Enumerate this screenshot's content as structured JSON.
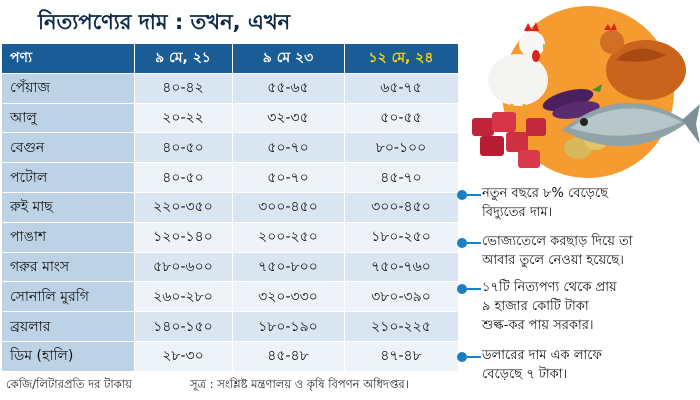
{
  "title": "নিত্যপণ্যের দাম : তখন, এখন",
  "table": {
    "headers": [
      "পণ্য",
      "৯ মে, ২১",
      "৯ মে ২৩",
      "১২ মে, ২৪"
    ],
    "rows": [
      [
        "পেঁয়াজ",
        "৪০-৪২",
        "৫৫-৬৫",
        "৬৫-৭৫"
      ],
      [
        "আলু",
        "২০-২২",
        "৩২-৩৫",
        "৫০-৫৫"
      ],
      [
        "বেগুন",
        "৪০-৫০",
        "৫০-৭০",
        "৮০-১০০"
      ],
      [
        "পটোল",
        "৪০-৫০",
        "৫০-৭০",
        "৪৫-৭০"
      ],
      [
        "রুই মাছ",
        "২২০-৩৫০",
        "৩০০-৪৫০",
        "৩০০-৪৫০"
      ],
      [
        "পাঙাশ",
        "১২০-১৪০",
        "২০০-২৫০",
        "১৮০-২৫০"
      ],
      [
        "গরুর মাংস",
        "৫৮০-৬০০",
        "৭৫০-৮০০",
        "৭৫০-৭৬০"
      ],
      [
        "সোনালি মুরগি",
        "২৬০-২৮০",
        "৩২০-৩৩০",
        "৩৮০-৩৯০"
      ],
      [
        "ব্রয়লার",
        "১৪০-১৫০",
        "১৮০-১৯০",
        "২১০-২২৫"
      ],
      [
        "ডিম (হালি)",
        "২৮-৩০",
        "৪৫-৪৮",
        "৪৭-৪৮"
      ]
    ]
  },
  "notes": [
    "নতুন বছরে ৮% বেড়েছে\nবিদ্যুতের দাম।",
    "ভোজ্যতেলে করছাড় দিয়ে তা\nআবার তুলে নেওয়া হয়েছে।",
    "১৭টি নিত্যপণ্য থেকে প্রায়\n৯ হাজার কোটি টাকা\nশুল্ক-কর পায় সরকার।",
    "ডলারের দাম এক লাফে\nবেড়েছে ৭ টাকা।"
  ],
  "footnote": "কেজি/লিটারপ্রতি দর টাকায়",
  "source": "সূত্র : সংশ্লিষ্ট মন্ত্রণালয় ও কৃষি বিপণন অধিদপ্তর।",
  "colors": {
    "header_bg": "#1a5d96",
    "header_highlight": "#ffd400",
    "row_light": "#edf3f8",
    "row_mid": "#d9e6f1",
    "accent": "#1a7fc1"
  },
  "illustration": "food-illustration (chickens, vegetables, meat, fish)"
}
